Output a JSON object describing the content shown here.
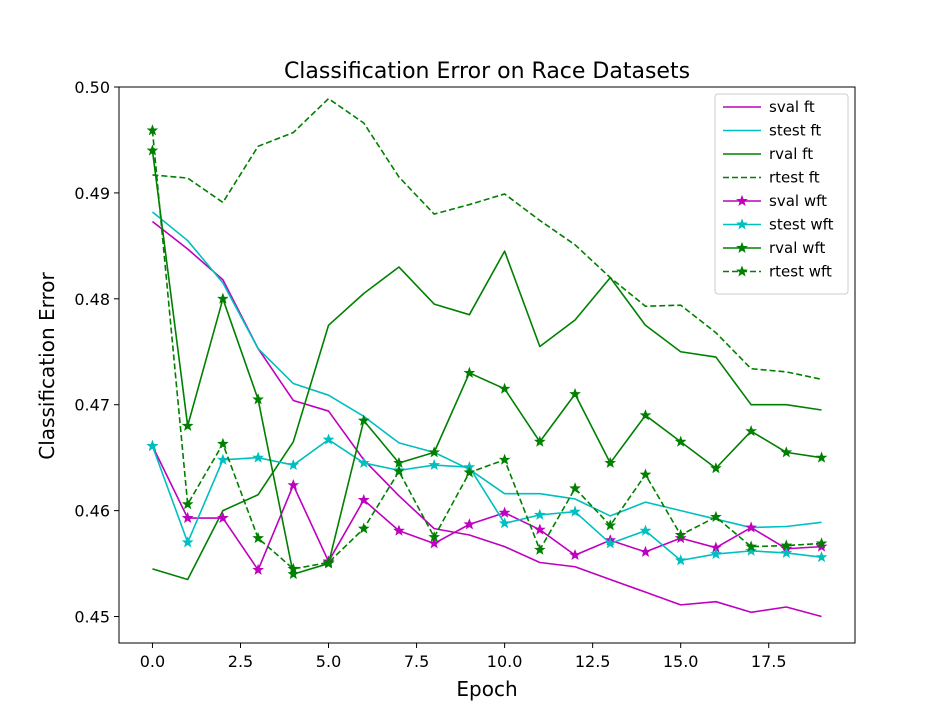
{
  "chart_data": {
    "type": "line",
    "title": "Classification Error on Race Datasets",
    "xlabel": "Epoch",
    "ylabel": "Classification Error",
    "xlim": [
      -0.95,
      19.95
    ],
    "ylim": [
      0.4475,
      0.5
    ],
    "xticks": [
      0.0,
      2.5,
      5.0,
      7.5,
      10.0,
      12.5,
      15.0,
      17.5
    ],
    "xtick_labels": [
      "0.0",
      "2.5",
      "5.0",
      "7.5",
      "10.0",
      "12.5",
      "15.0",
      "17.5"
    ],
    "yticks": [
      0.45,
      0.46,
      0.47,
      0.48,
      0.49,
      0.5
    ],
    "ytick_labels": [
      "0.45",
      "0.46",
      "0.47",
      "0.48",
      "0.49",
      "0.50"
    ],
    "grid": false,
    "legend_position": "top-right",
    "x": [
      0,
      1,
      2,
      3,
      4,
      5,
      6,
      7,
      8,
      9,
      10,
      11,
      12,
      13,
      14,
      15,
      16,
      17,
      18,
      19
    ],
    "series": [
      {
        "name": "sval ft",
        "color": "#bf00bf",
        "dash": "solid",
        "marker": "none",
        "values": [
          0.4873,
          0.4847,
          0.4818,
          0.4753,
          0.4704,
          0.4694,
          0.4648,
          0.4614,
          0.4583,
          0.4577,
          0.4566,
          0.4551,
          0.4547,
          0.4535,
          0.4523,
          0.4511,
          0.4514,
          0.4504,
          0.4509,
          0.45
        ]
      },
      {
        "name": "stest ft",
        "color": "#00bfbf",
        "dash": "solid",
        "marker": "none",
        "values": [
          0.4882,
          0.4855,
          0.4815,
          0.4753,
          0.472,
          0.4709,
          0.4689,
          0.4664,
          0.4655,
          0.4639,
          0.4616,
          0.4616,
          0.4611,
          0.4595,
          0.4608,
          0.46,
          0.4592,
          0.4584,
          0.4585,
          0.4589
        ]
      },
      {
        "name": "rval ft",
        "color": "#008000",
        "dash": "solid",
        "marker": "none",
        "values": [
          0.4545,
          0.4535,
          0.46,
          0.4615,
          0.4665,
          0.4775,
          0.4805,
          0.483,
          0.4795,
          0.4785,
          0.4845,
          0.4755,
          0.478,
          0.482,
          0.4775,
          0.475,
          0.4745,
          0.47,
          0.47,
          0.4695
        ]
      },
      {
        "name": "rtest ft",
        "color": "#008000",
        "dash": "dashed",
        "marker": "none",
        "values": [
          0.4917,
          0.4914,
          0.4891,
          0.4944,
          0.4957,
          0.4989,
          0.4966,
          0.4915,
          0.488,
          0.4889,
          0.4899,
          0.4874,
          0.4851,
          0.482,
          0.4793,
          0.4794,
          0.4768,
          0.4734,
          0.4731,
          0.4724
        ]
      },
      {
        "name": "sval wft",
        "color": "#bf00bf",
        "dash": "solid",
        "marker": "star",
        "values": [
          0.4661,
          0.4593,
          0.4593,
          0.4544,
          0.4624,
          0.4552,
          0.461,
          0.4581,
          0.4569,
          0.4587,
          0.4598,
          0.4582,
          0.4558,
          0.4572,
          0.4561,
          0.4574,
          0.4565,
          0.4584,
          0.4564,
          0.4566
        ]
      },
      {
        "name": "stest wft",
        "color": "#00bfbf",
        "dash": "solid",
        "marker": "star",
        "values": [
          0.4661,
          0.457,
          0.4648,
          0.465,
          0.4643,
          0.4667,
          0.4645,
          0.4638,
          0.4643,
          0.4641,
          0.4588,
          0.4596,
          0.4599,
          0.4569,
          0.4581,
          0.4553,
          0.4559,
          0.4562,
          0.456,
          0.4556
        ]
      },
      {
        "name": "rval wft",
        "color": "#008000",
        "dash": "solid",
        "marker": "star",
        "values": [
          0.494,
          0.468,
          0.48,
          0.4705,
          0.454,
          0.455,
          0.4685,
          0.4645,
          0.4655,
          0.473,
          0.4715,
          0.4665,
          0.471,
          0.4645,
          0.469,
          0.4665,
          0.464,
          0.4675,
          0.4655,
          0.465
        ]
      },
      {
        "name": "rtest wft",
        "color": "#008000",
        "dash": "dashed",
        "marker": "star",
        "values": [
          0.4959,
          0.4606,
          0.4663,
          0.4574,
          0.4545,
          0.4551,
          0.4583,
          0.4637,
          0.4575,
          0.4636,
          0.4648,
          0.4563,
          0.4621,
          0.4586,
          0.4634,
          0.4577,
          0.4594,
          0.4566,
          0.4567,
          0.4569
        ]
      }
    ]
  }
}
